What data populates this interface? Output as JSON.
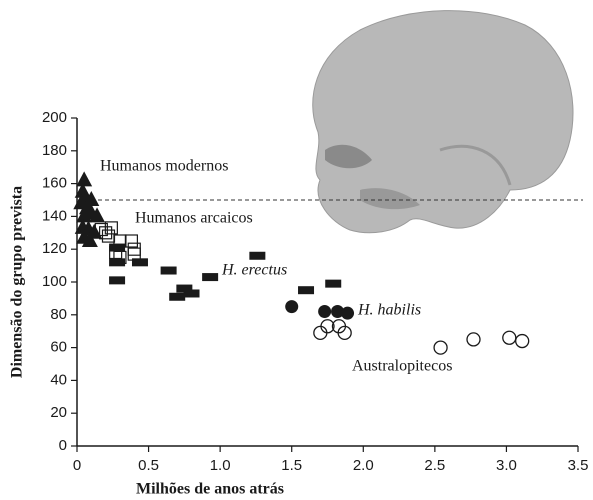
{
  "chart_data": {
    "type": "scatter",
    "x_label": "Milhões de anos atrás",
    "y_label": "Dimensão do grupo prevista",
    "xlim": [
      0,
      3.5
    ],
    "ylim": [
      0,
      200
    ],
    "xticks": [
      0,
      0.5,
      {
        "value": 1,
        "label": "1.0"
      },
      1.5,
      {
        "value": 2,
        "label": "2.0"
      },
      2.5,
      {
        "value": 3,
        "label": "3.0"
      },
      3.5
    ],
    "yticks": [
      0,
      20,
      40,
      60,
      80,
      100,
      120,
      140,
      160,
      180,
      200
    ],
    "reference_line": 150,
    "series": [
      {
        "name": "Humanos modernos",
        "marker": "triangle",
        "color": "#1a1a1a",
        "x": [
          0.05,
          0.04,
          0.06,
          0.03,
          0.1,
          0.07,
          0.05,
          0.1,
          0.14,
          0.04,
          0.08,
          0.12,
          0.05,
          0.09
        ],
        "values": [
          162,
          155,
          150,
          148,
          150,
          145,
          140,
          142,
          140,
          133,
          132,
          130,
          127,
          125
        ]
      },
      {
        "name": "Humanos arcaicos",
        "marker": "open-square",
        "color": "#1a1a1a",
        "x": [
          0.17,
          0.2,
          0.24,
          0.3,
          0.38,
          0.4,
          0.27,
          0.3,
          0.22,
          0.4
        ],
        "values": [
          132,
          130,
          133,
          125,
          125,
          120,
          118,
          115,
          128,
          117
        ]
      },
      {
        "name": "H. erectus",
        "marker": "rect",
        "color": "#1a1a1a",
        "x": [
          0.28,
          0.28,
          0.28,
          0.44,
          0.64,
          0.75,
          0.8,
          0.7,
          0.93,
          1.26,
          1.6,
          1.79
        ],
        "values": [
          121,
          112,
          101,
          112,
          107,
          96,
          93,
          91,
          103,
          116,
          95,
          99
        ]
      },
      {
        "name": "H. habilis",
        "marker": "circle",
        "color": "#1a1a1a",
        "x": [
          1.5,
          1.73,
          1.82,
          1.89
        ],
        "values": [
          85,
          82,
          82,
          81
        ]
      },
      {
        "name": "Australopitecos",
        "marker": "open-circle",
        "color": "#1a1a1a",
        "x": [
          1.7,
          1.75,
          1.83,
          1.87,
          2.54,
          2.77,
          3.02,
          3.11
        ],
        "values": [
          69,
          73,
          73,
          69,
          60,
          65,
          66,
          64
        ]
      }
    ]
  }
}
